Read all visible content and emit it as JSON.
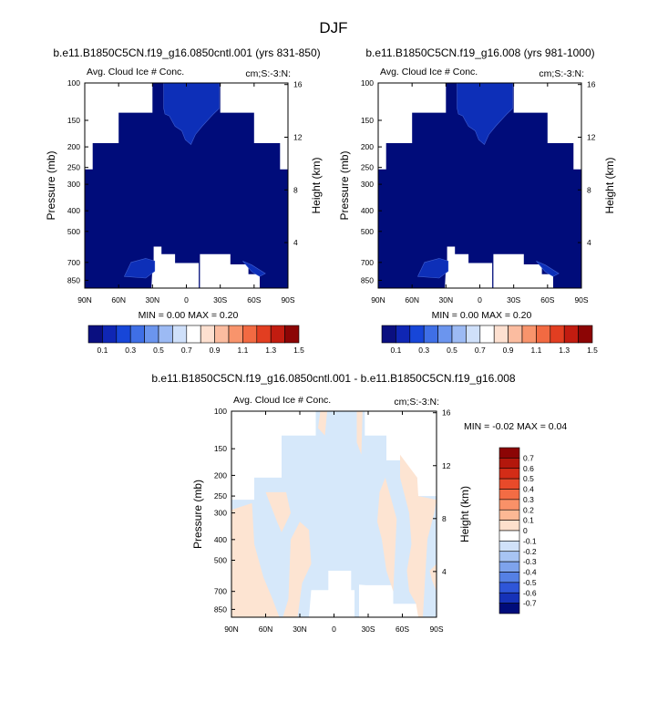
{
  "page": {
    "title": "DJF"
  },
  "chart_data": [
    {
      "type": "heatmap",
      "id": "p1",
      "title": "b.e11.B1850C5CN.f19_g16.0850cntl.001 (yrs 831-850)",
      "subtitle_left": "Avg. Cloud Ice # Conc.",
      "subtitle_right": "cm;S:-3:N:",
      "xlabel": "",
      "ylabel": "Pressure (mb)",
      "y2label": "Height (km)",
      "xticks": [
        "90N",
        "60N",
        "30N",
        "0",
        "30S",
        "60S",
        "90S"
      ],
      "xlim": [
        90,
        -90
      ],
      "yticks": [
        100,
        150,
        200,
        250,
        300,
        400,
        500,
        700,
        850
      ],
      "ylim": [
        100,
        925
      ],
      "y2ticks": [
        4,
        8,
        12,
        16
      ],
      "stats": "MIN =   0.00   MAX =   0.20",
      "fill_primary": "#000c7a",
      "fill_secondary": "#0d2fb8",
      "colorbar": {
        "orientation": "horizontal",
        "labels": [
          "0.1",
          "0.3",
          "0.5",
          "0.7",
          "0.9",
          "1.1",
          "1.3",
          "1.5"
        ],
        "colors": [
          "#0a0f80",
          "#0f26b4",
          "#1746d8",
          "#3f6fe6",
          "#6b95ee",
          "#9cbaf4",
          "#cfe0fa",
          "#ffffff",
          "#fde0d0",
          "#fbbca0",
          "#f8946c",
          "#f26a42",
          "#e23e21",
          "#c21c10",
          "#8c0505"
        ]
      }
    },
    {
      "type": "heatmap",
      "id": "p2",
      "title": "b.e11.B1850C5CN.f19_g16.008 (yrs 981-1000)",
      "subtitle_left": "Avg. Cloud Ice # Conc.",
      "subtitle_right": "cm;S:-3:N:",
      "xlabel": "",
      "ylabel": "Pressure (mb)",
      "y2label": "Height (km)",
      "xticks": [
        "90N",
        "60N",
        "30N",
        "0",
        "30S",
        "60S",
        "90S"
      ],
      "xlim": [
        90,
        -90
      ],
      "yticks": [
        100,
        150,
        200,
        250,
        300,
        400,
        500,
        700,
        850
      ],
      "ylim": [
        100,
        925
      ],
      "y2ticks": [
        4,
        8,
        12,
        16
      ],
      "stats": "MIN =   0.00   MAX =   0.20",
      "fill_primary": "#000c7a",
      "fill_secondary": "#0d2fb8",
      "colorbar": {
        "orientation": "horizontal",
        "labels": [
          "0.1",
          "0.3",
          "0.5",
          "0.7",
          "0.9",
          "1.1",
          "1.3",
          "1.5"
        ],
        "colors": [
          "#0a0f80",
          "#0f26b4",
          "#1746d8",
          "#3f6fe6",
          "#6b95ee",
          "#9cbaf4",
          "#cfe0fa",
          "#ffffff",
          "#fde0d0",
          "#fbbca0",
          "#f8946c",
          "#f26a42",
          "#e23e21",
          "#c21c10",
          "#8c0505"
        ]
      }
    },
    {
      "type": "heatmap",
      "id": "p3",
      "title": "b.e11.B1850C5CN.f19_g16.0850cntl.001 - b.e11.B1850C5CN.f19_g16.008",
      "subtitle_left": "Avg. Cloud Ice # Conc.",
      "subtitle_right": "cm;S:-3:N:",
      "xlabel": "",
      "ylabel": "Pressure (mb)",
      "y2label": "Height (km)",
      "xticks": [
        "90N",
        "60N",
        "30N",
        "0",
        "30S",
        "60S",
        "90S"
      ],
      "xlim": [
        90,
        -90
      ],
      "yticks": [
        100,
        150,
        200,
        250,
        300,
        400,
        500,
        700,
        850
      ],
      "ylim": [
        100,
        925
      ],
      "y2ticks": [
        4,
        8,
        12,
        16
      ],
      "stats": "MIN =  -0.02  MAX =   0.04",
      "fill_negative": "#d6e8fa",
      "fill_positive": "#fde4d2",
      "colorbar": {
        "orientation": "vertical",
        "labels": [
          "0.7",
          "0.6",
          "0.5",
          "0.4",
          "0.3",
          "0.2",
          "0.1",
          "0",
          "-0.1",
          "-0.2",
          "-0.3",
          "-0.4",
          "-0.5",
          "-0.6",
          "-0.7"
        ],
        "colors": [
          "#8c0505",
          "#b3170c",
          "#d32c17",
          "#e84a2a",
          "#f36c44",
          "#f99168",
          "#fcb894",
          "#fde0cc",
          "#ffffff",
          "#d0e2fa",
          "#a7c4f3",
          "#7ea3ec",
          "#5580e4",
          "#2f56d8",
          "#1632b8",
          "#000c7a"
        ]
      }
    }
  ]
}
